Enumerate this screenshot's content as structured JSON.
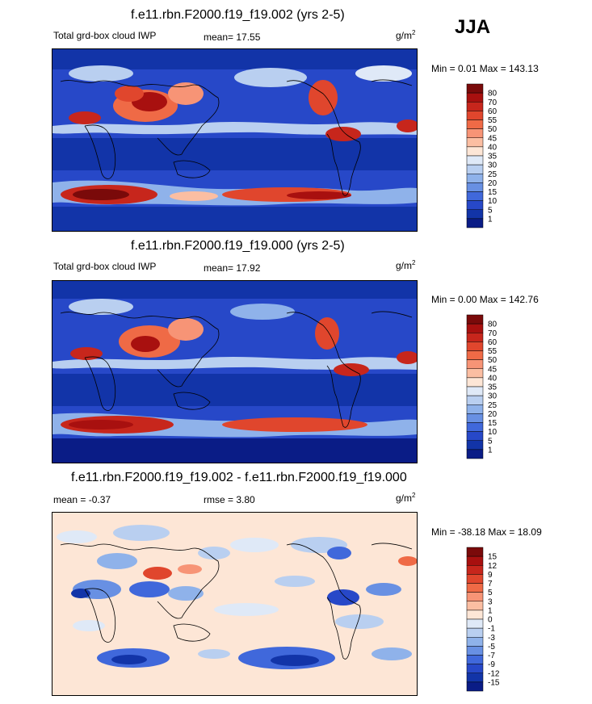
{
  "season": "JJA",
  "unit_base": "g/m",
  "unit_exp": "2",
  "panels": [
    {
      "title": "f.e11.rbn.F2000.f19_f19.002 (yrs 2-5)",
      "left_label": "Total grd-box cloud IWP",
      "stat1": "mean=  17.55",
      "stat2": "",
      "minmax": "Min =   0.01 Max = 143.13",
      "colorbar": {
        "labels": [
          "80",
          "70",
          "60",
          "55",
          "50",
          "45",
          "40",
          "35",
          "30",
          "25",
          "20",
          "15",
          "10",
          "5",
          "1"
        ],
        "colors": [
          "#7a0a0a",
          "#a8100f",
          "#c7261c",
          "#e0462d",
          "#ef6a46",
          "#f79476",
          "#fbbea2",
          "#fde6d6",
          "#dfe9f7",
          "#b9cff0",
          "#8fb2ea",
          "#6890e3",
          "#4068db",
          "#2748c8",
          "#1234a8",
          "#0a1c86"
        ]
      }
    },
    {
      "title": "f.e11.rbn.F2000.f19_f19.000 (yrs 2-5)",
      "left_label": "Total grd-box cloud IWP",
      "stat1": "mean=  17.92",
      "stat2": "",
      "minmax": "Min =   0.00 Max = 142.76",
      "colorbar": {
        "labels": [
          "80",
          "70",
          "60",
          "55",
          "50",
          "45",
          "40",
          "35",
          "30",
          "25",
          "20",
          "15",
          "10",
          "5",
          "1"
        ],
        "colors": [
          "#7a0a0a",
          "#a8100f",
          "#c7261c",
          "#e0462d",
          "#ef6a46",
          "#f79476",
          "#fbbea2",
          "#fde6d6",
          "#dfe9f7",
          "#b9cff0",
          "#8fb2ea",
          "#6890e3",
          "#4068db",
          "#2748c8",
          "#1234a8",
          "#0a1c86"
        ]
      }
    },
    {
      "title": "f.e11.rbn.F2000.f19_f19.002 - f.e11.rbn.F2000.f19_f19.000",
      "left_label": "mean =  -0.37",
      "stat1": "rmse =   3.80",
      "stat2": "",
      "minmax": "Min = -38.18 Max =  18.09",
      "colorbar": {
        "labels": [
          "15",
          "12",
          "9",
          "7",
          "5",
          "3",
          "1",
          "0",
          "-1",
          "-3",
          "-5",
          "-7",
          "-9",
          "-12",
          "-15"
        ],
        "colors": [
          "#7a0a0a",
          "#a8100f",
          "#c7261c",
          "#e0462d",
          "#ef6a46",
          "#f79476",
          "#fbbea2",
          "#fde6d6",
          "#dfe9f7",
          "#b9cff0",
          "#8fb2ea",
          "#6890e3",
          "#4068db",
          "#2748c8",
          "#1234a8",
          "#0a1c86"
        ]
      }
    }
  ]
}
